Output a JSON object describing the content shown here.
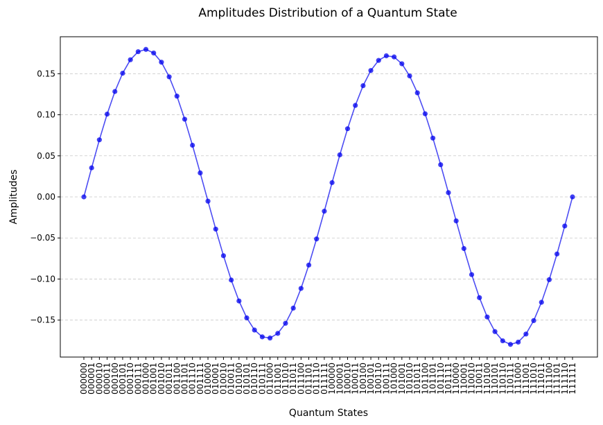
{
  "chart_data": {
    "type": "line",
    "title": "Amplitudes Distribution of a Quantum State",
    "xlabel": "Quantum States",
    "ylabel": "Amplitudes",
    "ylim": [
      -0.195,
      0.195
    ],
    "yticks": [
      -0.15,
      -0.1,
      -0.05,
      0.0,
      0.05,
      0.1,
      0.15
    ],
    "ytick_labels": [
      "−0.15",
      "−0.10",
      "−0.05",
      "0.00",
      "0.05",
      "0.10",
      "0.15"
    ],
    "grid": "y-dashed",
    "line_color": "#0000ee",
    "categories": [
      "000000",
      "000001",
      "000010",
      "000011",
      "000100",
      "000101",
      "000110",
      "000111",
      "001000",
      "001001",
      "001010",
      "001011",
      "001100",
      "001101",
      "001110",
      "001111",
      "010000",
      "010001",
      "010010",
      "010011",
      "010100",
      "010101",
      "010110",
      "010111",
      "011000",
      "011001",
      "011010",
      "011011",
      "011100",
      "011101",
      "011110",
      "011111",
      "100000",
      "100001",
      "100010",
      "100011",
      "100100",
      "100101",
      "100110",
      "100111",
      "101000",
      "101001",
      "101010",
      "101011",
      "101100",
      "101101",
      "101110",
      "101111",
      "110000",
      "110001",
      "110010",
      "110011",
      "110100",
      "110101",
      "110110",
      "110111",
      "111000",
      "111001",
      "111010",
      "111011",
      "111100",
      "111101",
      "111110",
      "111111"
    ],
    "series": [
      {
        "values": [
          0.0,
          0.0354,
          0.0695,
          0.1008,
          0.1283,
          0.1506,
          0.167,
          0.1768,
          0.1796,
          0.1752,
          0.164,
          0.1462,
          0.1227,
          0.0946,
          0.0629,
          0.0292,
          -0.0052,
          -0.0392,
          -0.0716,
          -0.1012,
          -0.1267,
          -0.1473,
          -0.1621,
          -0.1704,
          -0.1718,
          -0.1662,
          -0.1539,
          -0.1354,
          -0.1114,
          -0.083,
          -0.0512,
          -0.0174,
          0.0174,
          0.0512,
          0.083,
          0.1114,
          0.1354,
          0.1539,
          0.1662,
          0.1718,
          0.1704,
          0.1621,
          0.1473,
          0.1267,
          0.1012,
          0.0716,
          0.0392,
          0.0052,
          -0.0292,
          -0.0629,
          -0.0946,
          -0.1227,
          -0.1462,
          -0.164,
          -0.1752,
          -0.1796,
          -0.1768,
          -0.167,
          -0.1506,
          -0.1283,
          -0.1008,
          -0.0695,
          -0.0354,
          0.0
        ]
      }
    ]
  }
}
